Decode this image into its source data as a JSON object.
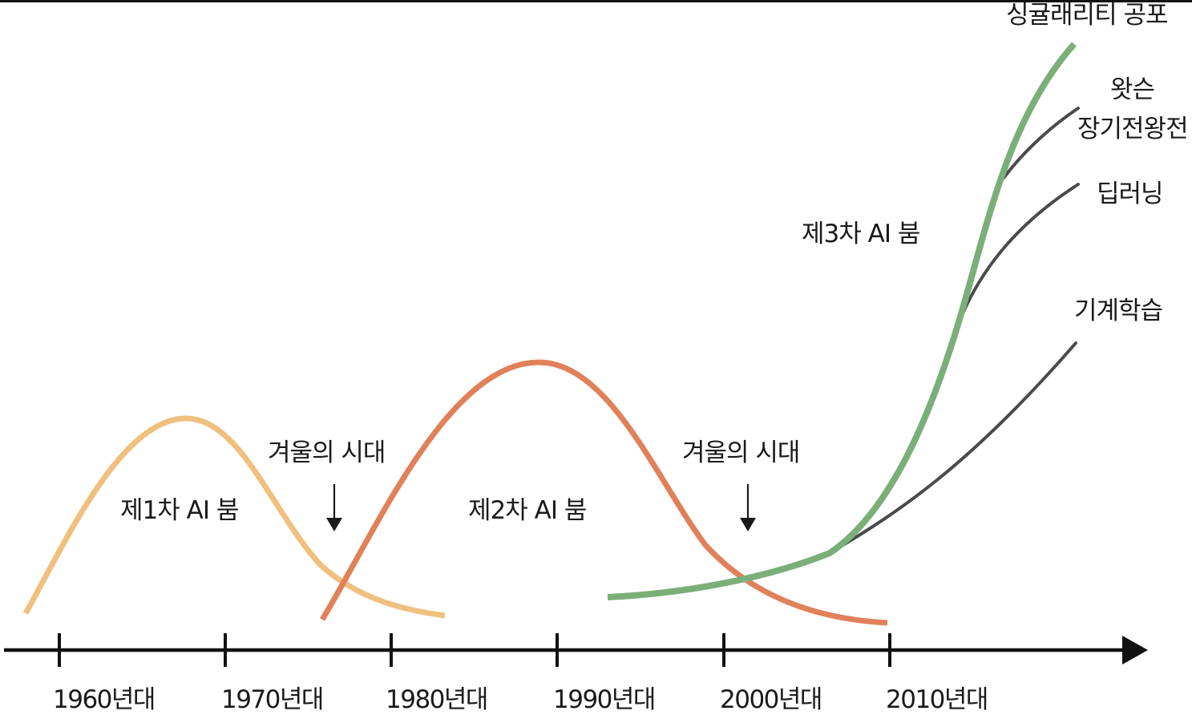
{
  "colors": {
    "boom1": "#f0c07e",
    "boom2": "#e0815a",
    "boom3": "#7aaf78",
    "branch": "#4a4a4a",
    "axis": "#111111",
    "text": "#1a1a1a"
  },
  "timeline": {
    "ticks": [
      "1960년대",
      "1970년대",
      "1980년대",
      "1990년대",
      "2000년대",
      "2010년대"
    ]
  },
  "booms": {
    "first": "제1차 AI 붐",
    "second": "제2차 AI 붐",
    "third": "제3차 AI 붐"
  },
  "winters": {
    "first": "겨울의 시대",
    "second": "겨울의 시대"
  },
  "branches": {
    "singularity": "싱귤래리티 공포",
    "watson_line1": "왓슨",
    "watson_line2": "장기전왕전",
    "deep_learning": "딥러닝",
    "machine_learning": "기계학습"
  }
}
